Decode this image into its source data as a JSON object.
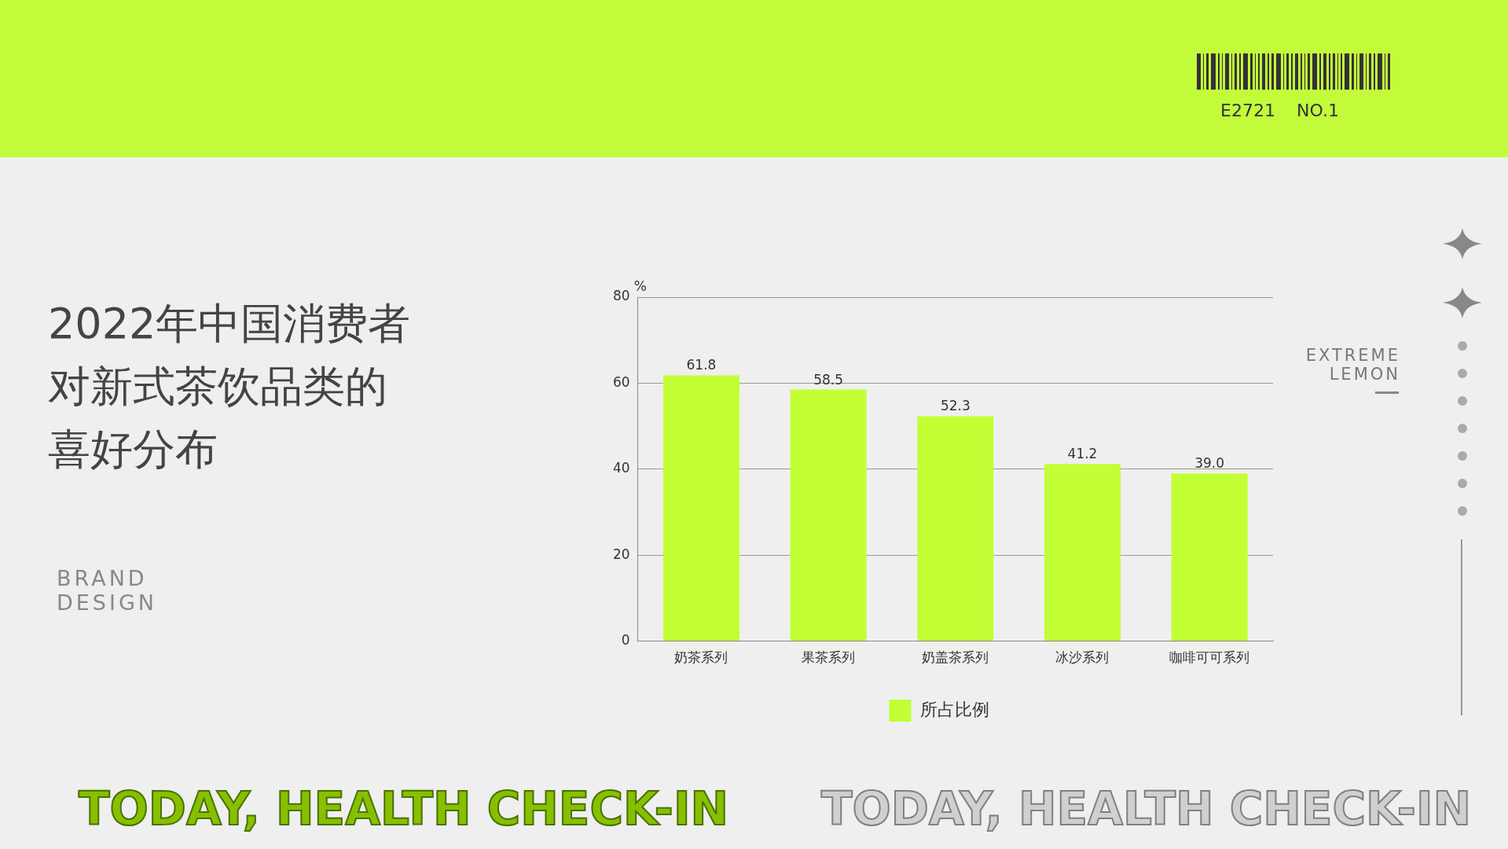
{
  "chart_data": {
    "type": "bar",
    "title": "2022年中国消费者对新式茶饮品类的喜好分布",
    "ylabel": "%",
    "categories": [
      "奶茶系列",
      "果茶系列",
      "奶盖茶系列",
      "冰沙系列",
      "咖啡可可系列"
    ],
    "series": [
      {
        "name": "所占比例",
        "color": "#c2ff35",
        "values": [
          61.8,
          58.5,
          52.3,
          41.2,
          39.0
        ]
      }
    ],
    "value_labels": [
      "61.8",
      "58.5",
      "52.3",
      "41.2",
      "39.0"
    ],
    "ylim": [
      0,
      80
    ],
    "yticks": [
      0,
      20,
      40,
      60,
      80
    ],
    "grid": "y",
    "legend": "bottom",
    "annotations": [
      "E2721",
      "NO.1",
      "EXTREME LEMON",
      "BRAND DESIGN",
      "TODAY, HEALTH CHECK-IN",
      "TODAY, HEALTH CHECK-IN"
    ]
  }
}
